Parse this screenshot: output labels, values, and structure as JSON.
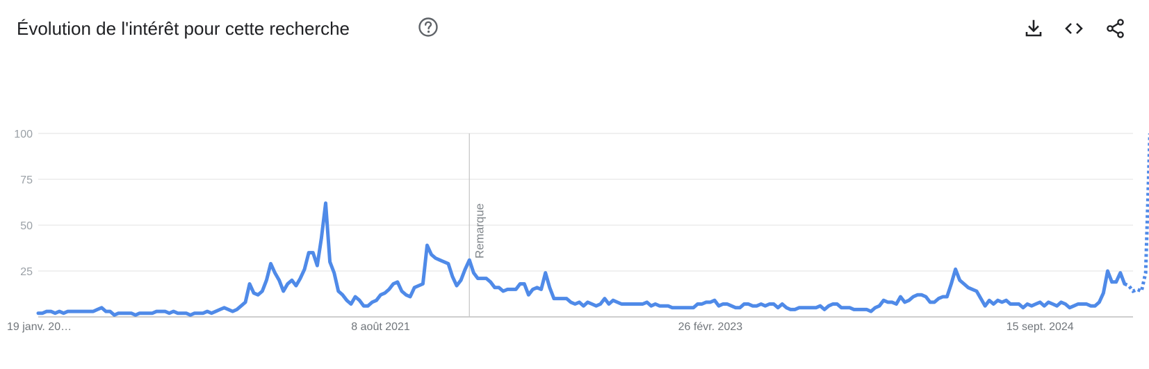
{
  "header": {
    "title": "Évolution de l'intérêt pour cette recherche",
    "help_icon": "help-circle-icon",
    "actions": [
      {
        "name": "download",
        "icon": "download-icon"
      },
      {
        "name": "embed",
        "icon": "code-icon"
      },
      {
        "name": "share",
        "icon": "share-icon"
      }
    ]
  },
  "colors": {
    "line": "#4f8ae8",
    "grid": "#e0e0e0",
    "axis": "#bdbdbd",
    "marker": "#c8c8c8"
  },
  "chart_data": {
    "type": "line",
    "ylim": [
      0,
      100
    ],
    "yticks": [
      "100",
      "75",
      "50",
      "25"
    ],
    "ytick_values": [
      100,
      75,
      50,
      25
    ],
    "xlim": [
      0,
      259
    ],
    "xticks": [
      {
        "label": "19 janv. 20…",
        "index": 0
      },
      {
        "label": "8 août 2021",
        "index": 81
      },
      {
        "label": "26 févr. 2023",
        "index": 159
      },
      {
        "label": "15 sept. 2024",
        "index": 237
      }
    ],
    "annotations": [
      {
        "label": "Remarque",
        "index": 102
      }
    ],
    "grid": true,
    "legend": "none",
    "partial_from_index": 258,
    "series": [
      {
        "values": [
          2,
          2,
          3,
          3,
          2,
          3,
          2,
          3,
          3,
          3,
          3,
          3,
          3,
          3,
          4,
          5,
          3,
          3,
          1,
          2,
          2,
          2,
          2,
          1,
          2,
          2,
          2,
          2,
          3,
          3,
          3,
          2,
          3,
          2,
          2,
          2,
          1,
          2,
          2,
          2,
          3,
          2,
          3,
          4,
          5,
          4,
          3,
          4,
          6,
          8,
          18,
          13,
          12,
          14,
          20,
          29,
          24,
          20,
          14,
          18,
          20,
          17,
          21,
          26,
          35,
          35,
          28,
          43,
          62,
          30,
          24,
          14,
          12,
          9,
          7,
          11,
          9,
          6,
          6,
          8,
          9,
          12,
          13,
          15,
          18,
          19,
          14,
          12,
          11,
          16,
          17,
          18,
          39,
          34,
          32,
          31,
          30,
          29,
          22,
          17,
          20,
          26,
          31,
          24,
          21,
          21,
          21,
          19,
          16,
          16,
          14,
          15,
          15,
          15,
          18,
          18,
          12,
          15,
          16,
          15,
          24,
          16,
          10,
          10,
          10,
          10,
          8,
          7,
          8,
          6,
          8,
          7,
          6,
          7,
          10,
          7,
          9,
          8,
          7,
          7,
          7,
          7,
          7,
          7,
          8,
          6,
          7,
          6,
          6,
          6,
          5,
          5,
          5,
          5,
          5,
          5,
          7,
          7,
          8,
          8,
          9,
          6,
          7,
          7,
          6,
          5,
          5,
          7,
          7,
          6,
          6,
          7,
          6,
          7,
          7,
          5,
          7,
          5,
          4,
          4,
          5,
          5,
          5,
          5,
          5,
          6,
          4,
          6,
          7,
          7,
          5,
          5,
          5,
          4,
          4,
          4,
          4,
          3,
          5,
          6,
          9,
          8,
          8,
          7,
          11,
          8,
          9,
          11,
          12,
          12,
          11,
          8,
          8,
          10,
          11,
          11,
          18,
          26,
          20,
          18,
          16,
          15,
          14,
          10,
          6,
          9,
          7,
          9,
          8,
          9,
          7,
          7,
          7,
          5,
          7,
          6,
          7,
          8,
          6,
          8,
          7,
          6,
          8,
          7,
          5,
          6,
          7,
          7,
          7,
          6,
          6,
          8,
          13,
          25,
          19,
          19,
          24,
          18,
          17,
          14,
          15,
          14,
          24,
          100
        ]
      }
    ]
  }
}
